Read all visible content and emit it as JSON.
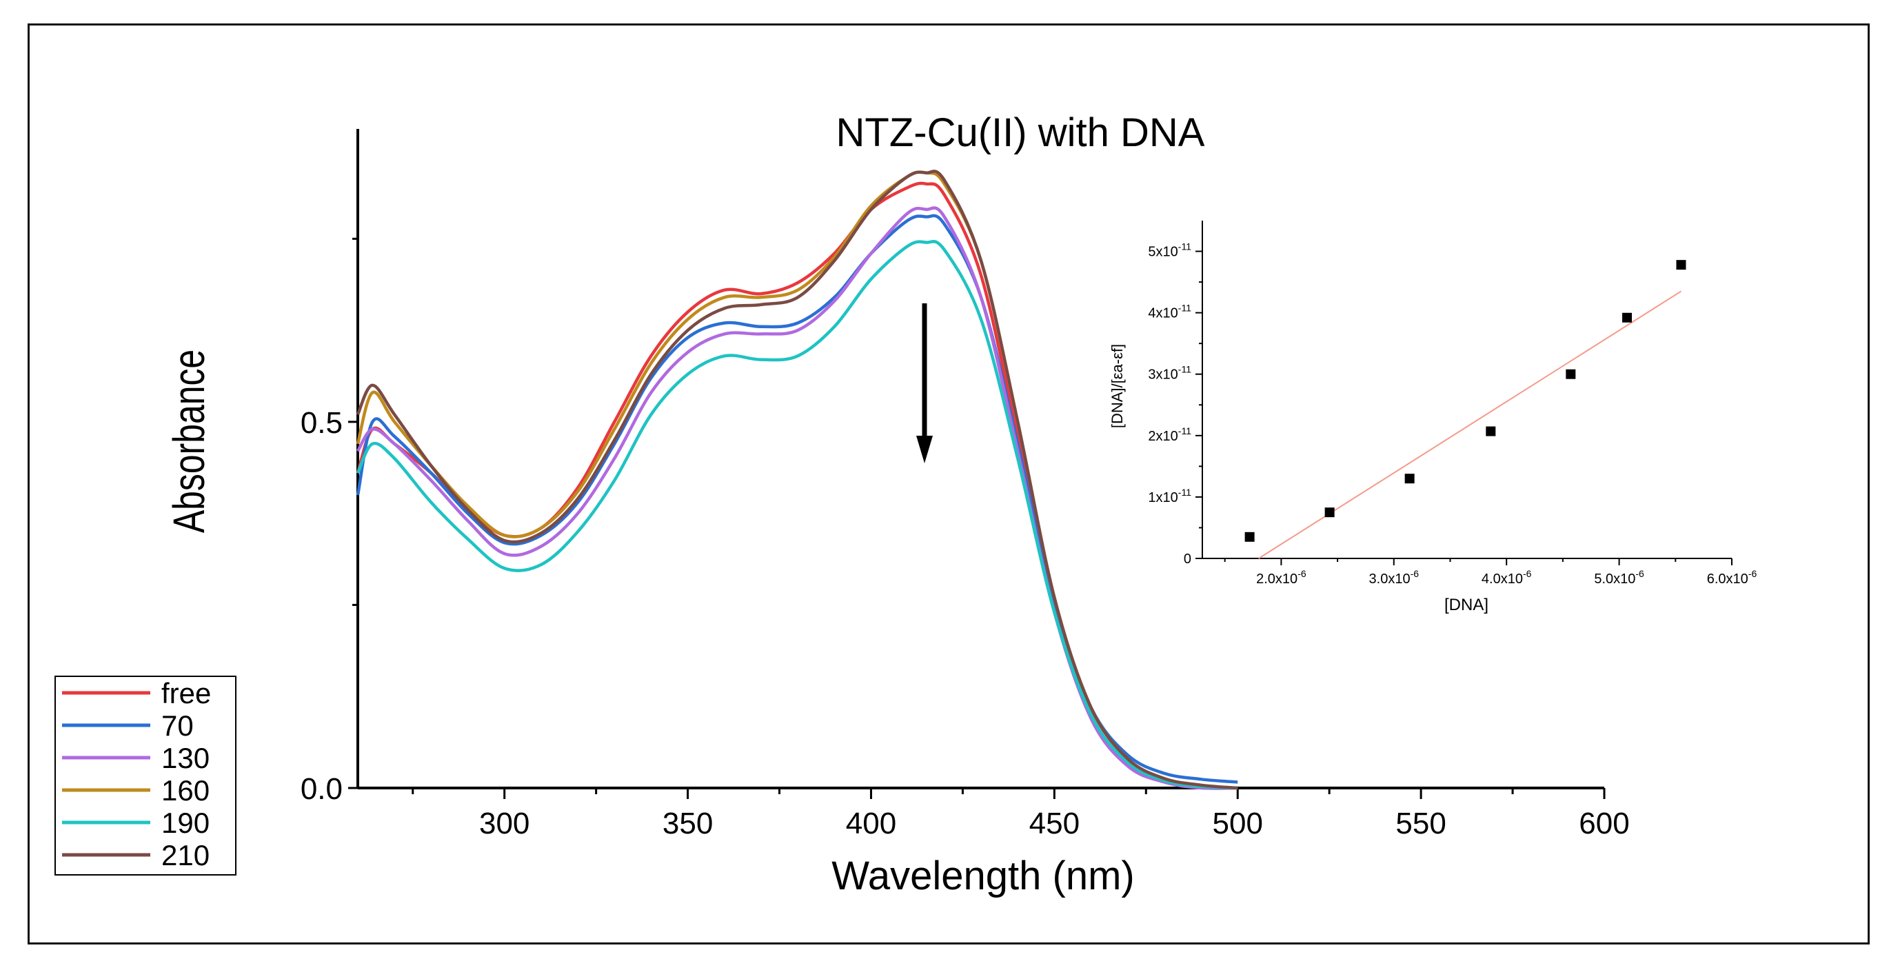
{
  "chart_data": [
    {
      "type": "line",
      "title": "NTZ-Cu(II) with DNA",
      "xlabel": "Wavelength (nm)",
      "ylabel": "Absorbance",
      "xlim": [
        260,
        600
      ],
      "ylim": [
        0.0,
        0.9
      ],
      "xticks": [
        300,
        350,
        400,
        450,
        500,
        550,
        600
      ],
      "yticks": [
        0.0,
        0.5
      ],
      "ytick_labels": [
        "0.0",
        "0.5"
      ],
      "legend_position": "bottom-left",
      "annotation": "downward arrow at ~415 nm indicating hypochromism",
      "series": [
        {
          "name": "free",
          "color": "#e8383d",
          "x": [
            260,
            264,
            270,
            280,
            290,
            300,
            310,
            320,
            330,
            340,
            350,
            360,
            370,
            380,
            390,
            400,
            410,
            415,
            420,
            430,
            440,
            450,
            460,
            470,
            480,
            490,
            500
          ],
          "y": [
            0.43,
            0.49,
            0.47,
            0.43,
            0.38,
            0.345,
            0.355,
            0.41,
            0.5,
            0.59,
            0.65,
            0.68,
            0.675,
            0.69,
            0.73,
            0.79,
            0.82,
            0.825,
            0.81,
            0.7,
            0.48,
            0.25,
            0.1,
            0.035,
            0.01,
            0.002,
            0.0
          ]
        },
        {
          "name": "70",
          "color": "#2a6fd4",
          "x": [
            260,
            264,
            270,
            280,
            290,
            300,
            310,
            320,
            330,
            340,
            350,
            360,
            370,
            380,
            390,
            400,
            410,
            415,
            420,
            430,
            440,
            450,
            460,
            470,
            480,
            490,
            500
          ],
          "y": [
            0.4,
            0.5,
            0.48,
            0.43,
            0.375,
            0.335,
            0.345,
            0.39,
            0.47,
            0.56,
            0.615,
            0.635,
            0.63,
            0.635,
            0.67,
            0.73,
            0.775,
            0.78,
            0.77,
            0.67,
            0.47,
            0.25,
            0.11,
            0.045,
            0.02,
            0.012,
            0.008
          ]
        },
        {
          "name": "130",
          "color": "#b06ae0",
          "x": [
            260,
            264,
            270,
            280,
            290,
            300,
            310,
            320,
            330,
            340,
            350,
            360,
            370,
            380,
            390,
            400,
            410,
            415,
            420,
            430,
            440,
            450,
            460,
            470,
            480,
            490,
            500
          ],
          "y": [
            0.46,
            0.49,
            0.47,
            0.42,
            0.365,
            0.32,
            0.33,
            0.375,
            0.45,
            0.54,
            0.595,
            0.62,
            0.62,
            0.625,
            0.665,
            0.73,
            0.785,
            0.79,
            0.78,
            0.67,
            0.46,
            0.24,
            0.095,
            0.03,
            0.008,
            0.0,
            0.0
          ]
        },
        {
          "name": "160",
          "color": "#c08a1c",
          "x": [
            260,
            264,
            270,
            280,
            290,
            300,
            310,
            320,
            330,
            340,
            350,
            360,
            370,
            380,
            390,
            400,
            410,
            415,
            420,
            430,
            440,
            450,
            460,
            470,
            480,
            490,
            500
          ],
          "y": [
            0.47,
            0.54,
            0.5,
            0.44,
            0.385,
            0.345,
            0.355,
            0.405,
            0.49,
            0.58,
            0.64,
            0.67,
            0.67,
            0.68,
            0.725,
            0.795,
            0.835,
            0.84,
            0.825,
            0.72,
            0.5,
            0.26,
            0.11,
            0.04,
            0.012,
            0.003,
            0.0
          ]
        },
        {
          "name": "190",
          "color": "#1fc3c3",
          "x": [
            260,
            264,
            270,
            280,
            290,
            300,
            310,
            320,
            330,
            340,
            350,
            360,
            370,
            380,
            390,
            400,
            410,
            415,
            420,
            430,
            440,
            450,
            460,
            470,
            480,
            490,
            500
          ],
          "y": [
            0.43,
            0.47,
            0.45,
            0.39,
            0.34,
            0.3,
            0.305,
            0.35,
            0.42,
            0.51,
            0.565,
            0.59,
            0.585,
            0.59,
            0.63,
            0.695,
            0.74,
            0.745,
            0.735,
            0.64,
            0.45,
            0.24,
            0.1,
            0.035,
            0.01,
            0.002,
            0.0
          ]
        },
        {
          "name": "210",
          "color": "#7a4b44",
          "x": [
            260,
            264,
            270,
            280,
            290,
            300,
            310,
            320,
            330,
            340,
            350,
            360,
            370,
            380,
            390,
            400,
            410,
            415,
            420,
            430,
            440,
            450,
            460,
            470,
            480,
            490,
            500
          ],
          "y": [
            0.51,
            0.55,
            0.51,
            0.44,
            0.38,
            0.338,
            0.348,
            0.395,
            0.475,
            0.565,
            0.625,
            0.655,
            0.66,
            0.67,
            0.72,
            0.79,
            0.835,
            0.84,
            0.83,
            0.72,
            0.5,
            0.26,
            0.11,
            0.04,
            0.013,
            0.004,
            0.0
          ]
        }
      ]
    },
    {
      "type": "scatter",
      "title": "",
      "xlabel": "[DNA]",
      "ylabel": "[DNA]/[εa-εf]",
      "xlim": [
        1.3e-06,
        6e-06
      ],
      "ylim": [
        0,
        5.5e-11
      ],
      "xticks": [
        2e-06,
        3e-06,
        4e-06,
        5e-06,
        6e-06
      ],
      "xtick_mantissa": [
        "2.0x10",
        "3.0x10",
        "4.0x10",
        "5.0x10",
        "6.0x10"
      ],
      "xtick_exponent": "-6",
      "yticks": [
        0,
        1e-11,
        2e-11,
        3e-11,
        4e-11,
        5e-11
      ],
      "ytick_mantissa": [
        "0",
        "1x10",
        "2x10",
        "3x10",
        "4x10",
        "5x10"
      ],
      "ytick_exponent": "-11",
      "points": {
        "x": [
          1.72e-06,
          2.43e-06,
          3.14e-06,
          3.86e-06,
          4.57e-06,
          5.07e-06,
          5.55e-06
        ],
        "y": [
          3.5e-12,
          7.5e-12,
          1.3e-11,
          2.07e-11,
          3e-11,
          3.92e-11,
          4.78e-11
        ]
      },
      "fit_line": {
        "x": [
          1.8e-06,
          5.55e-06
        ],
        "y": [
          0.0,
          4.35e-11
        ],
        "color": "#f59a8c"
      }
    }
  ]
}
